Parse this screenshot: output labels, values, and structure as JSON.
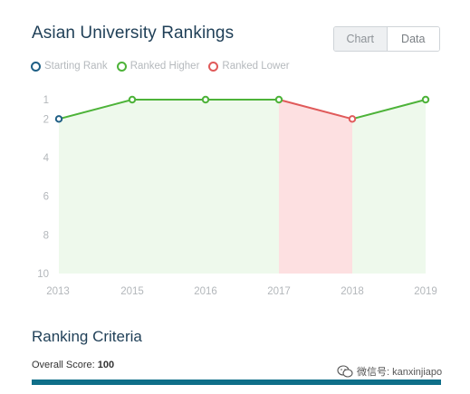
{
  "header": {
    "title": "Asian University Rankings"
  },
  "toggle": {
    "chart_label": "Chart",
    "data_label": "Data",
    "selected": "Chart"
  },
  "legend": {
    "starting": "Starting Rank",
    "higher": "Ranked Higher",
    "lower": "Ranked Lower"
  },
  "colors": {
    "starting": "#1f5f85",
    "higher": "#4db339",
    "lower": "#e05a5a",
    "higher_fill": "#eef9ec",
    "lower_fill": "#fde0e1"
  },
  "chart_data": {
    "type": "line",
    "x": [
      "2013",
      "2015",
      "2016",
      "2017",
      "2018",
      "2019"
    ],
    "y": [
      2,
      1,
      1,
      1,
      2,
      1
    ],
    "y_ticks": [
      1,
      2,
      4,
      6,
      8,
      10
    ],
    "ylim": [
      1,
      10
    ],
    "y_inverted": true,
    "legend_position": "top-left",
    "grid": false
  },
  "criteria": {
    "title": "Ranking Criteria",
    "score_label": "Overall Score:",
    "score_value": "100",
    "score_fraction": 1.0
  },
  "watermark": {
    "text": "微信号: kanxinjiapo"
  }
}
